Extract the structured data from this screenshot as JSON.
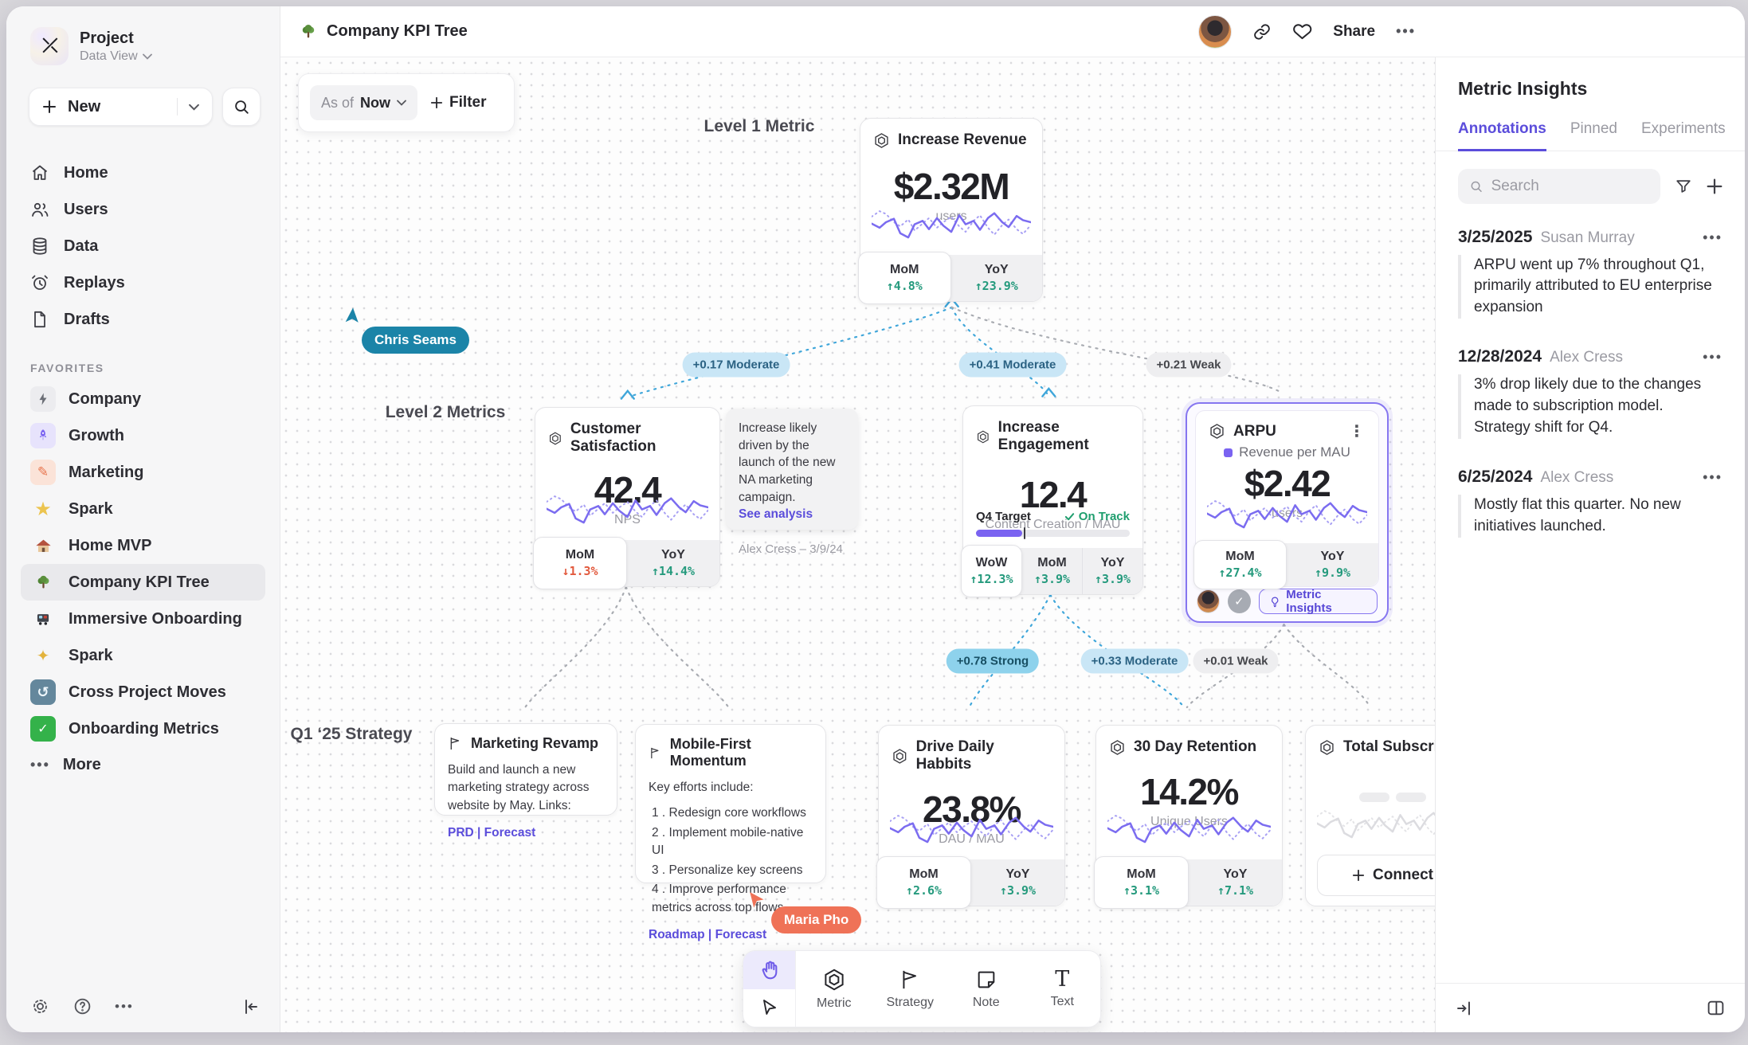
{
  "sidebar": {
    "project": {
      "name": "Project",
      "view": "Data View"
    },
    "new_label": "New",
    "nav": [
      {
        "icon": "home",
        "label": "Home"
      },
      {
        "icon": "users",
        "label": "Users"
      },
      {
        "icon": "database",
        "label": "Data"
      },
      {
        "icon": "replay-clock",
        "label": "Replays"
      },
      {
        "icon": "draft-file",
        "label": "Drafts"
      }
    ],
    "favorites_label": "FAVORITES",
    "favorites": [
      {
        "icon": "bolt",
        "label": "Company"
      },
      {
        "icon": "rocket",
        "label": "Growth"
      },
      {
        "icon": "pencil",
        "label": "Marketing"
      },
      {
        "icon": "star",
        "label": "Spark"
      },
      {
        "icon": "house",
        "label": "Home MVP"
      },
      {
        "icon": "tree",
        "label": "Company KPI Tree"
      },
      {
        "icon": "train",
        "label": "Immersive Onboarding"
      },
      {
        "icon": "sparkles",
        "label": "Spark"
      },
      {
        "icon": "swirl",
        "label": "Cross Project Moves"
      },
      {
        "icon": "check",
        "label": "Onboarding Metrics"
      }
    ],
    "more_label": "More"
  },
  "topbar": {
    "title": "Company KPI Tree",
    "share_label": "Share"
  },
  "canvas": {
    "asof": {
      "prefix": "As of",
      "value": "Now"
    },
    "filter_label": "Filter",
    "labels": {
      "level1": "Level 1 Metric",
      "level2": "Level 2 Metrics",
      "strategy": "Q1 ‘25 Strategy"
    },
    "cursors": {
      "chris": "Chris Seams",
      "maria": "Maria Pho"
    }
  },
  "edges": [
    {
      "label": "+0.17 Moderate",
      "strength": "moderate"
    },
    {
      "label": "+0.41 Moderate",
      "strength": "moderate"
    },
    {
      "label": "+0.21 Weak",
      "strength": "weak"
    },
    {
      "label": "+0.78 Strong",
      "strength": "strong"
    },
    {
      "label": "+0.33 Moderate",
      "strength": "moderate"
    },
    {
      "label": "+0.01 Weak",
      "strength": "weak"
    }
  ],
  "metrics": {
    "revenue": {
      "title": "Increase Revenue",
      "value": "$2.32M",
      "unit": "users",
      "stats": [
        {
          "label": "MoM",
          "delta": "↑4.8%",
          "dir": "up"
        },
        {
          "label": "YoY",
          "delta": "↑23.9%",
          "dir": "up"
        }
      ]
    },
    "satisfaction": {
      "title": "Customer Satisfaction",
      "value": "42.4",
      "unit": "NPS",
      "stats": [
        {
          "label": "MoM",
          "delta": "↓1.3%",
          "dir": "down"
        },
        {
          "label": "YoY",
          "delta": "↑14.4%",
          "dir": "up"
        }
      ]
    },
    "engagement": {
      "title": "Increase Engagement",
      "value": "12.4",
      "unit": "Content Creation / MAU",
      "target_label": "Q4 Target",
      "target_status": "On Track",
      "stats": [
        {
          "label": "WoW",
          "delta": "↑12.3%",
          "dir": "up"
        },
        {
          "label": "MoM",
          "delta": "↑3.9%",
          "dir": "up"
        },
        {
          "label": "YoY",
          "delta": "↑3.9%",
          "dir": "up"
        }
      ]
    },
    "arpu": {
      "title": "ARPU",
      "legend": "Revenue per MAU",
      "value": "$2.42",
      "unit": "users",
      "stats": [
        {
          "label": "MoM",
          "delta": "↑27.4%",
          "dir": "up"
        },
        {
          "label": "YoY",
          "delta": "↑9.9%",
          "dir": "up"
        }
      ],
      "insights_label": "Metric Insights"
    },
    "habits": {
      "title": "Drive Daily Habbits",
      "value": "23.8%",
      "unit": "DAU / MAU",
      "stats": [
        {
          "label": "MoM",
          "delta": "↑2.6%",
          "dir": "up"
        },
        {
          "label": "YoY",
          "delta": "↑3.9%",
          "dir": "up"
        }
      ]
    },
    "retention": {
      "title": "30 Day Retention",
      "value": "14.2%",
      "unit": "Unique Users",
      "stats": [
        {
          "label": "MoM",
          "delta": "↑3.1%",
          "dir": "up"
        },
        {
          "label": "YoY",
          "delta": "↑7.1%",
          "dir": "up"
        }
      ]
    },
    "subscriptions": {
      "title": "Total Subscript",
      "connect_label": "Connect"
    }
  },
  "notes": {
    "analysis": {
      "text": "Increase likely driven by the launch of the new NA marketing campaign.",
      "link": "See analysis",
      "author": "Alex Cress – 3/9/24"
    },
    "marketing": {
      "title": "Marketing Revamp",
      "body": "Build and launch a new marketing strategy across website by May. Links:",
      "links": "PRD | Forecast"
    },
    "mobile": {
      "title": "Mobile-First Momentum",
      "intro": "Key efforts include:",
      "items": [
        "Redesign core workflows",
        "Implement mobile-native UI",
        "Personalize key screens",
        "Improve performance metrics across top flows"
      ],
      "links": "Roadmap | Forecast"
    }
  },
  "toolbar": {
    "tools": [
      {
        "name": "metric",
        "label": "Metric"
      },
      {
        "name": "strategy",
        "label": "Strategy"
      },
      {
        "name": "note",
        "label": "Note"
      },
      {
        "name": "text",
        "label": "Text"
      }
    ]
  },
  "panel": {
    "title": "Metric Insights",
    "tabs": [
      "Annotations",
      "Pinned",
      "Experiments"
    ],
    "search_placeholder": "Search",
    "annotations": [
      {
        "date": "3/25/2025",
        "author": "Susan Murray",
        "text": "ARPU went up 7% throughout Q1, primarily attributed to EU enterprise expansion"
      },
      {
        "date": "12/28/2024",
        "author": "Alex Cress",
        "text": "3% drop likely due to the changes made to subscription model. Strategy shift for Q4."
      },
      {
        "date": "6/25/2024",
        "author": "Alex Cress",
        "text": "Mostly flat this quarter. No new initiatives launched."
      }
    ]
  },
  "colors": {
    "accent_purple": "#5b4ddb",
    "spark_purple": "#7b6cf0",
    "positive_green": "#259a7d",
    "negative_red": "#e25a3e",
    "edge_blue": "#3fa6da",
    "cursor_teal": "#1b84a8",
    "cursor_coral": "#ef7257"
  }
}
